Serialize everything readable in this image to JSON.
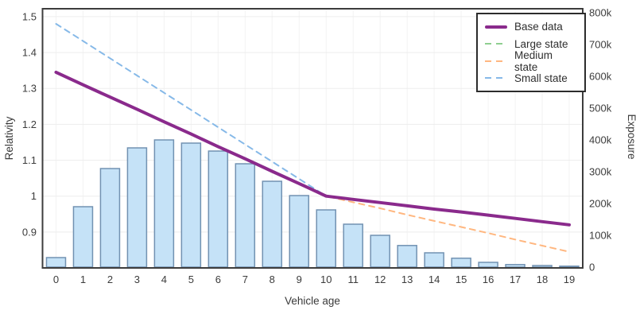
{
  "chart_data": {
    "type": "combo-bar-line",
    "title": "",
    "xlabel": "Vehicle age",
    "categories": [
      0,
      1,
      2,
      3,
      4,
      5,
      6,
      7,
      8,
      9,
      10,
      11,
      12,
      13,
      14,
      15,
      16,
      17,
      18,
      19
    ],
    "x_tick_labels": [
      "0",
      "1",
      "2",
      "3",
      "4",
      "5",
      "6",
      "7",
      "8",
      "9",
      "10",
      "11",
      "12",
      "13",
      "14",
      "15",
      "16",
      "17",
      "18",
      "19"
    ],
    "y_left": {
      "label": "Relativity",
      "tick_labels": [
        "0.9",
        "1",
        "1.1",
        "1.2",
        "1.3",
        "1.4",
        "1.5"
      ],
      "tick_values": [
        0.9,
        1.0,
        1.1,
        1.2,
        1.3,
        1.4,
        1.5
      ],
      "range": [
        0.8,
        1.522
      ],
      "grid": true
    },
    "y_right": {
      "label": "Exposure",
      "tick_labels": [
        "0",
        "100k",
        "200k",
        "300k",
        "400k",
        "500k",
        "600k",
        "700k",
        "800k"
      ],
      "tick_values_k": [
        0,
        100,
        200,
        300,
        400,
        500,
        600,
        700,
        800
      ],
      "range_k": [
        0,
        815
      ],
      "grid": false
    },
    "bars": {
      "name": "Exposure",
      "axis": "right",
      "units": "thousands",
      "fill": "#c5e2f7",
      "stroke": "#7292b2",
      "values_k": [
        30,
        190,
        310,
        375,
        400,
        390,
        365,
        325,
        270,
        225,
        180,
        135,
        100,
        68,
        45,
        28,
        15,
        8,
        5,
        3
      ]
    },
    "series": [
      {
        "name": "Base data",
        "color": "#8a2a8c",
        "dash": "solid",
        "width": 4,
        "values": [
          1.345,
          1.31,
          1.276,
          1.242,
          1.207,
          1.173,
          1.138,
          1.104,
          1.069,
          1.035,
          1.0,
          0.991,
          0.982,
          0.973,
          0.964,
          0.956,
          0.947,
          0.938,
          0.929,
          0.92
        ]
      },
      {
        "name": "Large state",
        "color": "#8fcf90",
        "dash": "dashed",
        "width": 2,
        "values": [
          1.345,
          1.31,
          1.276,
          1.242,
          1.207,
          1.173,
          1.138,
          1.104,
          1.069,
          1.035,
          1.0,
          0.991,
          0.982,
          0.973,
          0.964,
          0.956,
          0.947,
          0.938,
          0.929,
          0.92
        ]
      },
      {
        "name": "Medium state",
        "color": "#ffb780",
        "dash": "dashed",
        "width": 2,
        "values": [
          1.345,
          1.31,
          1.276,
          1.242,
          1.207,
          1.173,
          1.138,
          1.104,
          1.069,
          1.035,
          1.0,
          0.983,
          0.966,
          0.948,
          0.931,
          0.914,
          0.897,
          0.879,
          0.862,
          0.845
        ]
      },
      {
        "name": "Small state",
        "color": "#86b9e8",
        "dash": "dashed",
        "width": 2,
        "values": [
          1.48,
          1.432,
          1.384,
          1.336,
          1.288,
          1.24,
          1.192,
          1.144,
          1.096,
          1.048,
          1.0,
          0.991,
          0.982,
          0.973,
          0.964,
          0.956,
          0.947,
          0.938,
          0.929,
          0.92
        ]
      }
    ],
    "legend": {
      "position": "top-right",
      "border": "#2c2c2c"
    },
    "frame_color": "#3d3d3d",
    "grid_color": "#ededed"
  }
}
